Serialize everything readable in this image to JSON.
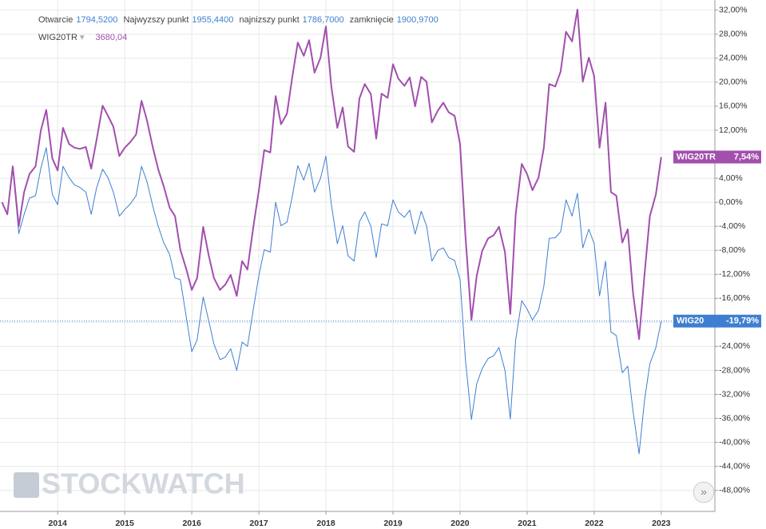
{
  "header": {
    "ohlc": [
      {
        "label": "Otwarcie",
        "value": "1794,5200"
      },
      {
        "label": "Najwyzszy punkt",
        "value": "1955,4400"
      },
      {
        "label": "najnizszy punkt",
        "value": "1786,7000"
      },
      {
        "label": "zamknięcie",
        "value": "1900,9700"
      }
    ],
    "instrument": "WIG20TR",
    "instrument_value": "3680,04"
  },
  "watermark": "STOCKWATCH",
  "nav_button": "»",
  "chart_data": {
    "type": "line",
    "x": [
      2013.17,
      2013.25,
      2013.33,
      2013.42,
      2013.5,
      2013.58,
      2013.67,
      2013.75,
      2013.83,
      2013.92,
      2014,
      2014.08,
      2014.17,
      2014.25,
      2014.33,
      2014.42,
      2014.5,
      2014.58,
      2014.67,
      2014.75,
      2014.83,
      2014.92,
      2015,
      2015.08,
      2015.17,
      2015.25,
      2015.33,
      2015.42,
      2015.5,
      2015.58,
      2015.67,
      2015.75,
      2015.83,
      2015.92,
      2016,
      2016.08,
      2016.17,
      2016.25,
      2016.33,
      2016.42,
      2016.5,
      2016.58,
      2016.67,
      2016.75,
      2016.83,
      2016.92,
      2017,
      2017.08,
      2017.17,
      2017.25,
      2017.33,
      2017.42,
      2017.5,
      2017.58,
      2017.67,
      2017.75,
      2017.83,
      2017.92,
      2018,
      2018.08,
      2018.17,
      2018.25,
      2018.33,
      2018.42,
      2018.5,
      2018.58,
      2018.67,
      2018.75,
      2018.83,
      2018.92,
      2019,
      2019.08,
      2019.17,
      2019.25,
      2019.33,
      2019.42,
      2019.5,
      2019.58,
      2019.67,
      2019.75,
      2019.83,
      2019.92,
      2020,
      2020.08,
      2020.17,
      2020.25,
      2020.33,
      2020.42,
      2020.5,
      2020.58,
      2020.67,
      2020.75,
      2020.83,
      2020.92,
      2021,
      2021.08,
      2021.17,
      2021.25,
      2021.33,
      2021.42,
      2021.5,
      2021.58,
      2021.67,
      2021.75,
      2021.83,
      2021.92,
      2022,
      2022.08,
      2022.17,
      2022.25,
      2022.33,
      2022.42,
      2022.5,
      2022.58,
      2022.67,
      2022.75,
      2022.83,
      2022.92,
      2023
    ],
    "series": [
      {
        "name": "WIG20TR",
        "color": "#a24fae",
        "width": 2,
        "last_label": "7,54%",
        "values": [
          0,
          -2.0,
          6.0,
          -4.0,
          1.7,
          4.7,
          6.0,
          12.0,
          15.4,
          7.3,
          5.3,
          12.4,
          9.7,
          9.1,
          8.9,
          9.2,
          5.6,
          10.4,
          16.1,
          14.4,
          12.6,
          7.7,
          9.1,
          10.0,
          11.3,
          16.9,
          13.7,
          9.1,
          5.5,
          2.7,
          -0.9,
          -2.3,
          -7.9,
          -11.2,
          -14.6,
          -12.6,
          -4.1,
          -8.7,
          -12.6,
          -14.6,
          -13.7,
          -12.1,
          -15.6,
          -9.8,
          -11.2,
          -3.9,
          2.0,
          8.7,
          8.3,
          17.7,
          13.0,
          14.8,
          21.0,
          26.6,
          24.4,
          27.0,
          21.6,
          24.1,
          29.3,
          19.3,
          12.4,
          15.8,
          9.3,
          8.4,
          17.3,
          19.7,
          18.0,
          10.6,
          18.1,
          17.4,
          23.0,
          20.6,
          19.4,
          20.8,
          16.0,
          20.9,
          20.1,
          13.3,
          15.3,
          16.6,
          15.0,
          14.4,
          9.7,
          -5.6,
          -19.6,
          -12.2,
          -8.1,
          -6.0,
          -5.5,
          -4.1,
          -8.3,
          -18.6,
          -2.0,
          6.4,
          4.7,
          2.0,
          4.1,
          9.1,
          19.7,
          19.3,
          21.8,
          28.4,
          26.8,
          32.1,
          20.1,
          24.1,
          21.0,
          9.1,
          16.6,
          1.7,
          1.1,
          -6.7,
          -4.5,
          -15.2,
          -22.8,
          -12.2,
          -2.3,
          1.3,
          7.54
        ]
      },
      {
        "name": "WIG20",
        "color": "#3f7fd1",
        "width": 1,
        "last_label": "-19,79%",
        "values": [
          0,
          -2.0,
          5.7,
          -5.2,
          -2.0,
          0.7,
          1.1,
          5.7,
          9.1,
          1.3,
          -0.4,
          6.0,
          4.1,
          2.9,
          2.5,
          1.7,
          -2.0,
          2.4,
          5.5,
          4.1,
          1.7,
          -2.3,
          -1.2,
          -0.3,
          1.1,
          6.0,
          3.5,
          -0.7,
          -4.0,
          -6.7,
          -8.7,
          -12.6,
          -12.9,
          -19.3,
          -24.9,
          -22.9,
          -15.8,
          -19.6,
          -23.6,
          -26.2,
          -25.8,
          -24.4,
          -28.0,
          -23.3,
          -24.0,
          -17.6,
          -12.2,
          -7.9,
          -8.3,
          0,
          -3.9,
          -3.3,
          1.1,
          6.1,
          3.7,
          6.5,
          1.7,
          4.0,
          7.7,
          -0.3,
          -6.9,
          -3.9,
          -8.9,
          -9.8,
          -3.2,
          -1.6,
          -4.0,
          -9.2,
          -3.6,
          -3.9,
          0.4,
          -1.6,
          -2.5,
          -1.3,
          -5.3,
          -1.5,
          -3.9,
          -9.8,
          -8.0,
          -7.6,
          -9.2,
          -9.7,
          -12.9,
          -26.2,
          -36.2,
          -30.2,
          -27.7,
          -26.0,
          -25.6,
          -24.2,
          -28.0,
          -36.1,
          -22.9,
          -16.4,
          -17.8,
          -19.6,
          -18.0,
          -14.0,
          -6.0,
          -5.9,
          -4.9,
          0.4,
          -2.3,
          1.5,
          -7.6,
          -4.5,
          -6.9,
          -15.6,
          -9.8,
          -21.6,
          -22.2,
          -28.4,
          -27.3,
          -34.9,
          -41.9,
          -33.1,
          -26.9,
          -24.2,
          -19.79
        ]
      }
    ],
    "xlim": [
      2013.14,
      2023.8
    ],
    "xticks": [
      2014,
      2015,
      2016,
      2017,
      2018,
      2019,
      2020,
      2021,
      2022,
      2023
    ],
    "ylim": [
      -51.5,
      33.7
    ],
    "yticks": [
      {
        "value": 32,
        "label": "32,00%"
      },
      {
        "value": 28,
        "label": "28,00%"
      },
      {
        "value": 24,
        "label": "24,00%"
      },
      {
        "value": 20,
        "label": "20,00%"
      },
      {
        "value": 16,
        "label": "16,00%"
      },
      {
        "value": 12,
        "label": "12,00%"
      },
      {
        "value": 8,
        "label": "8,00%"
      },
      {
        "value": 4,
        "label": "4,00%"
      },
      {
        "value": 0,
        "label": "0,00%"
      },
      {
        "value": -4,
        "label": "-4,00%"
      },
      {
        "value": -8,
        "label": "-8,00%"
      },
      {
        "value": -12,
        "label": "-12,00%"
      },
      {
        "value": -16,
        "label": "-16,00%"
      },
      {
        "value": -20,
        "label": "-20,00%"
      },
      {
        "value": -24,
        "label": "-24,00%"
      },
      {
        "value": -28,
        "label": "-28,00%"
      },
      {
        "value": -32,
        "label": "-32,00%"
      },
      {
        "value": -36,
        "label": "-36,00%"
      },
      {
        "value": -40,
        "label": "-40,00%"
      },
      {
        "value": -44,
        "label": "-44,00%"
      },
      {
        "value": -48,
        "label": "-48,00%"
      }
    ],
    "grid": true
  }
}
